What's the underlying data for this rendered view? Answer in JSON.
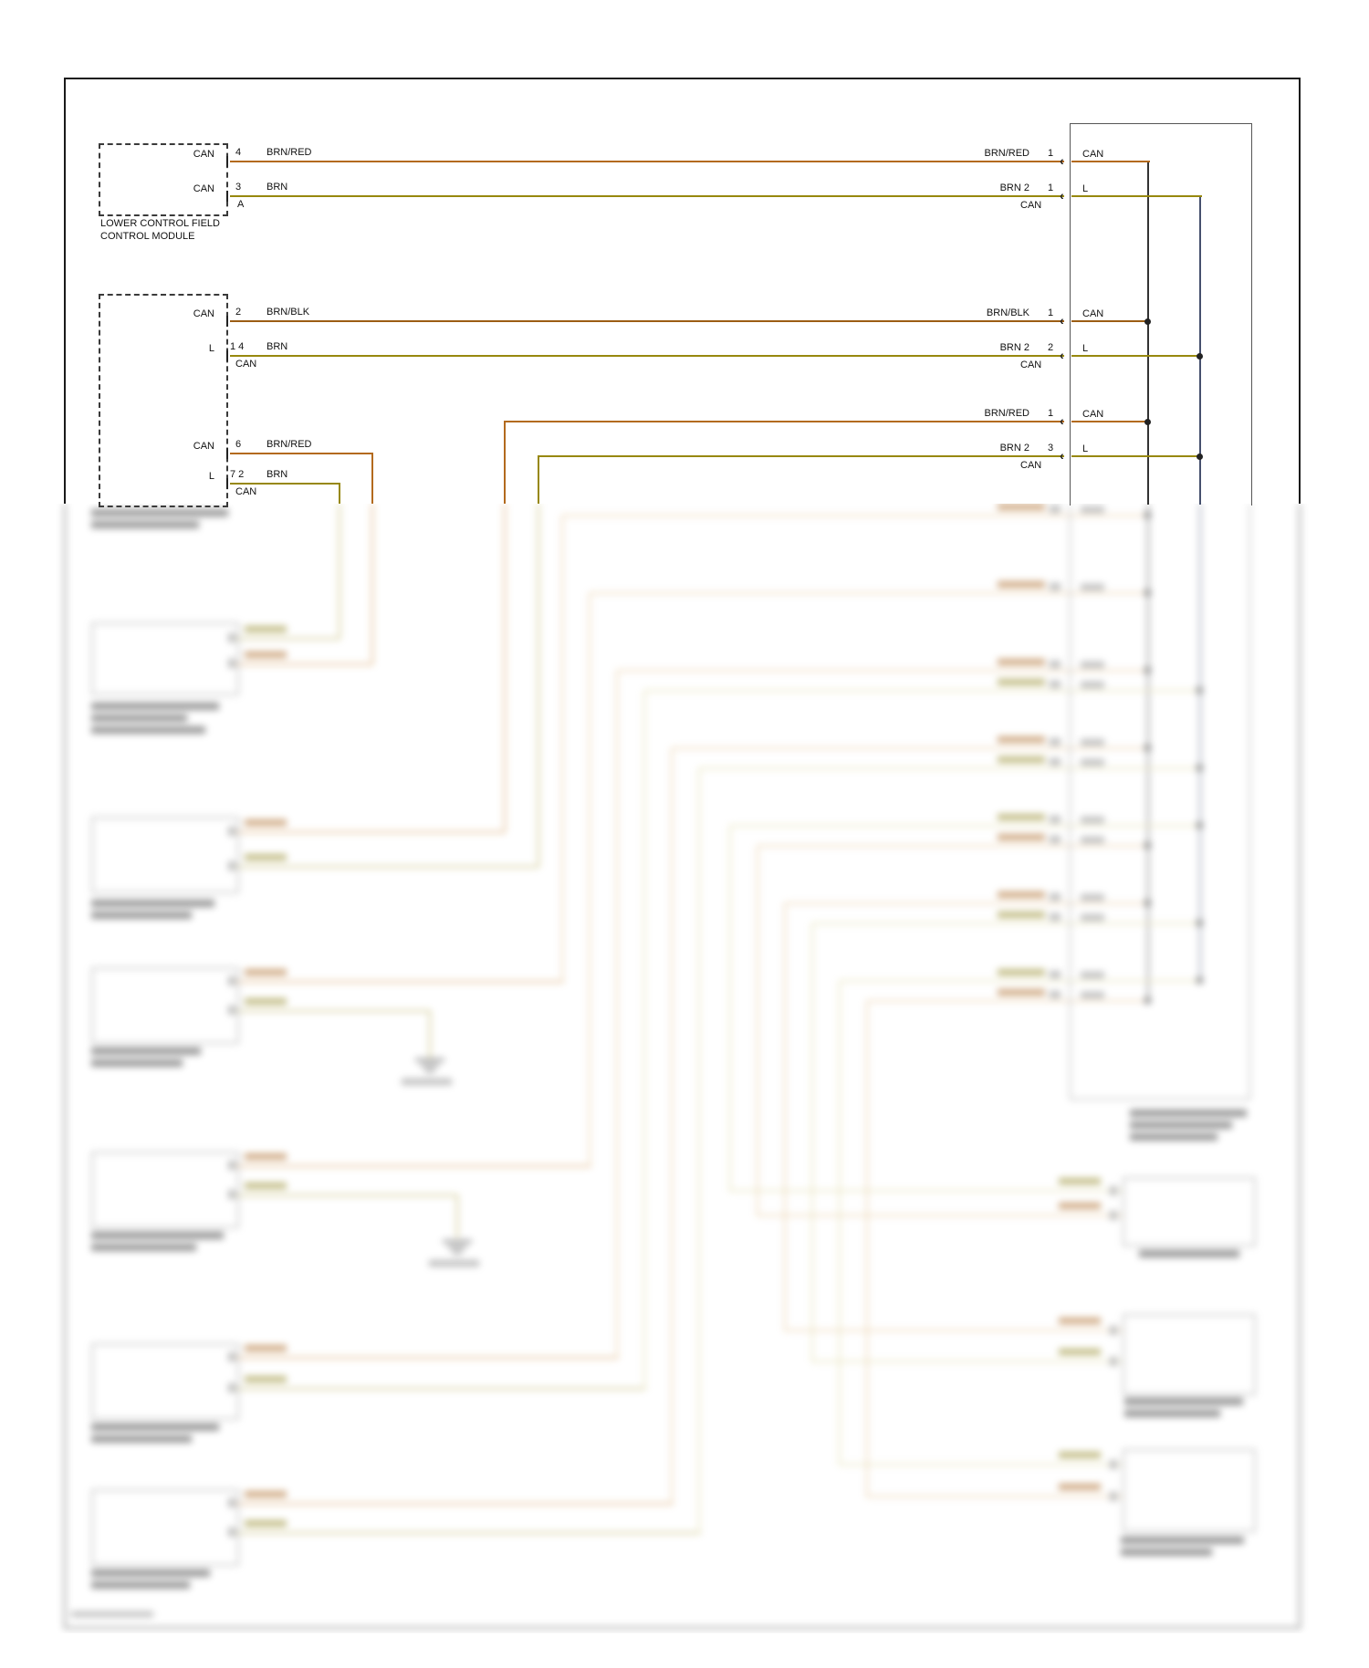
{
  "colors": {
    "brn_red": "#b36a1e",
    "brn": "#97880e",
    "brn_blk": "#9c5d14",
    "can_bus": "#333333",
    "l_bus": "#46506e",
    "frame": "#1a1a1a"
  },
  "icons": {
    "wire_arrow": "‹"
  },
  "left_module_1": {
    "caption": [
      "LOWER CONTROL FIELD",
      "CONTROL MODULE"
    ],
    "pin1_label": "CAN",
    "pin1_num": "4",
    "wire1": "BRN/RED",
    "pin2_label": "CAN",
    "pin2_num": "3",
    "pin2_conn": "A",
    "wire2": "BRN"
  },
  "left_module_2": {
    "pin1_label": "CAN",
    "pin1_num": "2",
    "wire1": "BRN/BLK",
    "pin2_label": "L",
    "pin2_num": "1 4",
    "pin2_conn": "CAN",
    "wire2": "BRN",
    "pin3_label": "CAN",
    "pin3_num": "6",
    "wire3": "BRN/RED",
    "pin4_label": "L",
    "pin4_num": "7 2",
    "pin4_conn": "CAN",
    "wire4": "BRN"
  },
  "right_connector_1": {
    "wire1": "BRN/RED",
    "pin1": "1",
    "inside1": "CAN",
    "wire2": "BRN 2",
    "pin2": "1",
    "inside2": "L",
    "conn2": "CAN"
  },
  "right_connector_2": {
    "wire1": "BRN/BLK",
    "pin1": "1",
    "inside1": "CAN",
    "wire2": "BRN 2",
    "pin2": "2",
    "inside2": "L",
    "conn2": "CAN"
  },
  "right_connector_3": {
    "wire1": "BRN/RED",
    "pin1": "1",
    "inside1": "CAN",
    "wire2": "BRN 2",
    "pin2": "3",
    "inside2": "L",
    "conn2": "CAN"
  }
}
